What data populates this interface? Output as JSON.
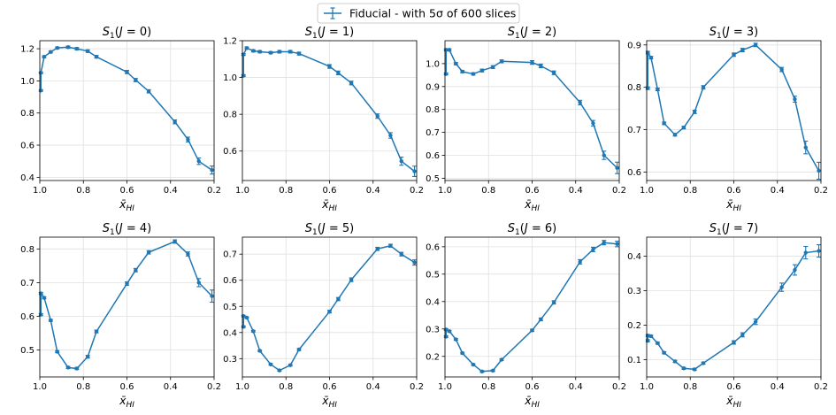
{
  "legend": {
    "label": "Fiducial - with 5σ of 600 slices",
    "position": "top-center"
  },
  "series_color": "#1f77b4",
  "chart_data": [
    {
      "type": "line",
      "title": "S1(J = 0)",
      "title_index": "0",
      "xlabel": "x̄_HI",
      "ylabel": "",
      "xlim": [
        1.0,
        0.2
      ],
      "ylim": [
        0.38,
        1.25
      ],
      "xticks": [
        1.0,
        0.8,
        0.6,
        0.4,
        0.2
      ],
      "xtick_labels": [
        "1.0",
        "0.8",
        "0.6",
        "0.4",
        "0.2"
      ],
      "yticks": [
        0.4,
        0.6,
        0.8,
        1.0,
        1.2
      ],
      "ytick_labels": [
        "0.4",
        "0.6",
        "0.8",
        "1.0",
        "1.2"
      ],
      "x": [
        0.995,
        0.995,
        0.98,
        0.95,
        0.92,
        0.87,
        0.83,
        0.78,
        0.74,
        0.6,
        0.56,
        0.5,
        0.38,
        0.32,
        0.27,
        0.21
      ],
      "y": [
        0.94,
        1.05,
        1.15,
        1.18,
        1.205,
        1.21,
        1.2,
        1.185,
        1.15,
        1.055,
        1.005,
        0.935,
        0.745,
        0.635,
        0.5,
        0.445
      ],
      "yerr": [
        0.005,
        0.005,
        0.006,
        0.006,
        0.006,
        0.007,
        0.007,
        0.008,
        0.008,
        0.01,
        0.01,
        0.01,
        0.012,
        0.015,
        0.02,
        0.025
      ]
    },
    {
      "type": "line",
      "title": "S1(J = 1)",
      "title_index": "1",
      "xlabel": "x̄_HI",
      "ylabel": "",
      "xlim": [
        1.0,
        0.2
      ],
      "ylim": [
        0.44,
        1.2
      ],
      "xticks": [
        1.0,
        0.8,
        0.6,
        0.4,
        0.2
      ],
      "xtick_labels": [
        "1.0",
        "0.8",
        "0.6",
        "0.4",
        "0.2"
      ],
      "yticks": [
        0.6,
        0.8,
        1.0,
        1.2
      ],
      "ytick_labels": [
        "0.6",
        "0.8",
        "1.0",
        "1.2"
      ],
      "x": [
        0.995,
        0.995,
        0.98,
        0.95,
        0.92,
        0.87,
        0.83,
        0.78,
        0.74,
        0.6,
        0.56,
        0.5,
        0.38,
        0.32,
        0.27,
        0.21
      ],
      "y": [
        1.01,
        1.125,
        1.16,
        1.145,
        1.14,
        1.135,
        1.14,
        1.14,
        1.13,
        1.06,
        1.025,
        0.97,
        0.79,
        0.685,
        0.545,
        0.49
      ],
      "yerr": [
        0.005,
        0.005,
        0.006,
        0.006,
        0.006,
        0.006,
        0.007,
        0.007,
        0.008,
        0.01,
        0.01,
        0.01,
        0.012,
        0.015,
        0.022,
        0.028
      ]
    },
    {
      "type": "line",
      "title": "S1(J = 2)",
      "title_index": "2",
      "xlabel": "x̄_HI",
      "ylabel": "",
      "xlim": [
        1.0,
        0.2
      ],
      "ylim": [
        0.49,
        1.1
      ],
      "xticks": [
        1.0,
        0.8,
        0.6,
        0.4,
        0.2
      ],
      "xtick_labels": [
        "1.0",
        "0.8",
        "0.6",
        "0.4",
        "0.2"
      ],
      "yticks": [
        0.5,
        0.6,
        0.7,
        0.8,
        0.9,
        1.0
      ],
      "ytick_labels": [
        "0.5",
        "0.6",
        "0.7",
        "0.8",
        "0.9",
        "1.0"
      ],
      "x": [
        0.995,
        0.995,
        0.98,
        0.95,
        0.92,
        0.87,
        0.83,
        0.78,
        0.74,
        0.6,
        0.56,
        0.5,
        0.38,
        0.32,
        0.27,
        0.21
      ],
      "y": [
        0.955,
        1.06,
        1.06,
        1.0,
        0.965,
        0.955,
        0.97,
        0.985,
        1.01,
        1.005,
        0.99,
        0.96,
        0.83,
        0.74,
        0.6,
        0.545
      ],
      "yerr": [
        0.004,
        0.004,
        0.005,
        0.005,
        0.005,
        0.005,
        0.006,
        0.006,
        0.006,
        0.008,
        0.008,
        0.008,
        0.01,
        0.012,
        0.018,
        0.025
      ]
    },
    {
      "type": "line",
      "title": "S1(J = 3)",
      "title_index": "3",
      "xlabel": "x̄_HI",
      "ylabel": "",
      "xlim": [
        1.0,
        0.2
      ],
      "ylim": [
        0.58,
        0.91
      ],
      "xticks": [
        1.0,
        0.8,
        0.6,
        0.4,
        0.2
      ],
      "xtick_labels": [
        "1.0",
        "0.8",
        "0.6",
        "0.4",
        "0.2"
      ],
      "yticks": [
        0.6,
        0.7,
        0.8,
        0.9
      ],
      "ytick_labels": [
        "0.6",
        "0.7",
        "0.8",
        "0.9"
      ],
      "x": [
        0.995,
        0.995,
        0.98,
        0.95,
        0.92,
        0.87,
        0.83,
        0.78,
        0.74,
        0.6,
        0.56,
        0.5,
        0.38,
        0.32,
        0.27,
        0.21
      ],
      "y": [
        0.798,
        0.882,
        0.87,
        0.795,
        0.715,
        0.688,
        0.705,
        0.742,
        0.8,
        0.877,
        0.888,
        0.9,
        0.842,
        0.772,
        0.658,
        0.603
      ],
      "yerr": [
        0.003,
        0.003,
        0.003,
        0.003,
        0.003,
        0.003,
        0.003,
        0.004,
        0.004,
        0.004,
        0.004,
        0.004,
        0.005,
        0.007,
        0.015,
        0.02
      ]
    },
    {
      "type": "line",
      "title": "S1(J = 4)",
      "title_index": "4",
      "xlabel": "x̄_HI",
      "ylabel": "",
      "xlim": [
        1.0,
        0.2
      ],
      "ylim": [
        0.42,
        0.835
      ],
      "xticks": [
        1.0,
        0.8,
        0.6,
        0.4,
        0.2
      ],
      "xtick_labels": [
        "1.0",
        "0.8",
        "0.6",
        "0.4",
        "0.2"
      ],
      "yticks": [
        0.5,
        0.6,
        0.7,
        0.8
      ],
      "ytick_labels": [
        "0.5",
        "0.6",
        "0.7",
        "0.8"
      ],
      "x": [
        0.995,
        0.995,
        0.98,
        0.95,
        0.92,
        0.87,
        0.83,
        0.78,
        0.74,
        0.6,
        0.56,
        0.5,
        0.38,
        0.32,
        0.27,
        0.21
      ],
      "y": [
        0.605,
        0.668,
        0.655,
        0.588,
        0.495,
        0.448,
        0.445,
        0.48,
        0.555,
        0.697,
        0.737,
        0.79,
        0.822,
        0.785,
        0.7,
        0.66
      ],
      "yerr": [
        0.003,
        0.003,
        0.003,
        0.003,
        0.003,
        0.003,
        0.003,
        0.004,
        0.004,
        0.005,
        0.005,
        0.005,
        0.005,
        0.006,
        0.012,
        0.018
      ]
    },
    {
      "type": "line",
      "title": "S1(J = 5)",
      "title_index": "5",
      "xlabel": "x̄_HI",
      "ylabel": "",
      "xlim": [
        1.0,
        0.2
      ],
      "ylim": [
        0.23,
        0.765
      ],
      "xticks": [
        1.0,
        0.8,
        0.6,
        0.4,
        0.2
      ],
      "xtick_labels": [
        "1.0",
        "0.8",
        "0.6",
        "0.4",
        "0.2"
      ],
      "yticks": [
        0.3,
        0.4,
        0.5,
        0.6,
        0.7
      ],
      "ytick_labels": [
        "0.3",
        "0.4",
        "0.5",
        "0.6",
        "0.7"
      ],
      "x": [
        0.995,
        0.995,
        0.98,
        0.95,
        0.92,
        0.87,
        0.83,
        0.78,
        0.74,
        0.6,
        0.56,
        0.5,
        0.38,
        0.32,
        0.27,
        0.21
      ],
      "y": [
        0.422,
        0.463,
        0.457,
        0.405,
        0.33,
        0.278,
        0.255,
        0.275,
        0.335,
        0.48,
        0.528,
        0.602,
        0.72,
        0.732,
        0.7,
        0.668
      ],
      "yerr": [
        0.003,
        0.003,
        0.003,
        0.003,
        0.003,
        0.003,
        0.003,
        0.003,
        0.004,
        0.005,
        0.006,
        0.007,
        0.006,
        0.006,
        0.007,
        0.01
      ]
    },
    {
      "type": "line",
      "title": "S1(J = 6)",
      "title_index": "6",
      "xlabel": "x̄_HI",
      "ylabel": "",
      "xlim": [
        1.0,
        0.2
      ],
      "ylim": [
        0.125,
        0.635
      ],
      "xticks": [
        1.0,
        0.8,
        0.6,
        0.4,
        0.2
      ],
      "xtick_labels": [
        "1.0",
        "0.8",
        "0.6",
        "0.4",
        "0.2"
      ],
      "yticks": [
        0.2,
        0.3,
        0.4,
        0.5,
        0.6
      ],
      "ytick_labels": [
        "0.2",
        "0.3",
        "0.4",
        "0.5",
        "0.6"
      ],
      "x": [
        0.995,
        0.995,
        0.98,
        0.95,
        0.92,
        0.87,
        0.83,
        0.78,
        0.74,
        0.6,
        0.56,
        0.5,
        0.38,
        0.32,
        0.27,
        0.21
      ],
      "y": [
        0.272,
        0.298,
        0.292,
        0.262,
        0.212,
        0.17,
        0.145,
        0.148,
        0.188,
        0.295,
        0.335,
        0.397,
        0.545,
        0.59,
        0.615,
        0.61
      ],
      "yerr": [
        0.003,
        0.003,
        0.003,
        0.003,
        0.003,
        0.003,
        0.003,
        0.003,
        0.003,
        0.004,
        0.005,
        0.006,
        0.008,
        0.008,
        0.008,
        0.01
      ]
    },
    {
      "type": "line",
      "title": "S1(J = 7)",
      "title_index": "7",
      "xlabel": "x̄_HI",
      "ylabel": "",
      "xlim": [
        1.0,
        0.2
      ],
      "ylim": [
        0.05,
        0.455
      ],
      "xticks": [
        1.0,
        0.8,
        0.6,
        0.4,
        0.2
      ],
      "xtick_labels": [
        "1.0",
        "0.8",
        "0.6",
        "0.4",
        "0.2"
      ],
      "yticks": [
        0.1,
        0.2,
        0.3,
        0.4
      ],
      "ytick_labels": [
        "0.1",
        "0.2",
        "0.3",
        "0.4"
      ],
      "x": [
        0.995,
        0.995,
        0.98,
        0.95,
        0.92,
        0.87,
        0.83,
        0.78,
        0.74,
        0.6,
        0.56,
        0.5,
        0.38,
        0.32,
        0.27,
        0.21
      ],
      "y": [
        0.155,
        0.17,
        0.168,
        0.148,
        0.12,
        0.095,
        0.075,
        0.072,
        0.09,
        0.15,
        0.172,
        0.21,
        0.31,
        0.36,
        0.41,
        0.415
      ],
      "yerr": [
        0.003,
        0.003,
        0.003,
        0.003,
        0.003,
        0.003,
        0.003,
        0.003,
        0.003,
        0.005,
        0.006,
        0.008,
        0.012,
        0.015,
        0.018,
        0.018
      ]
    }
  ]
}
